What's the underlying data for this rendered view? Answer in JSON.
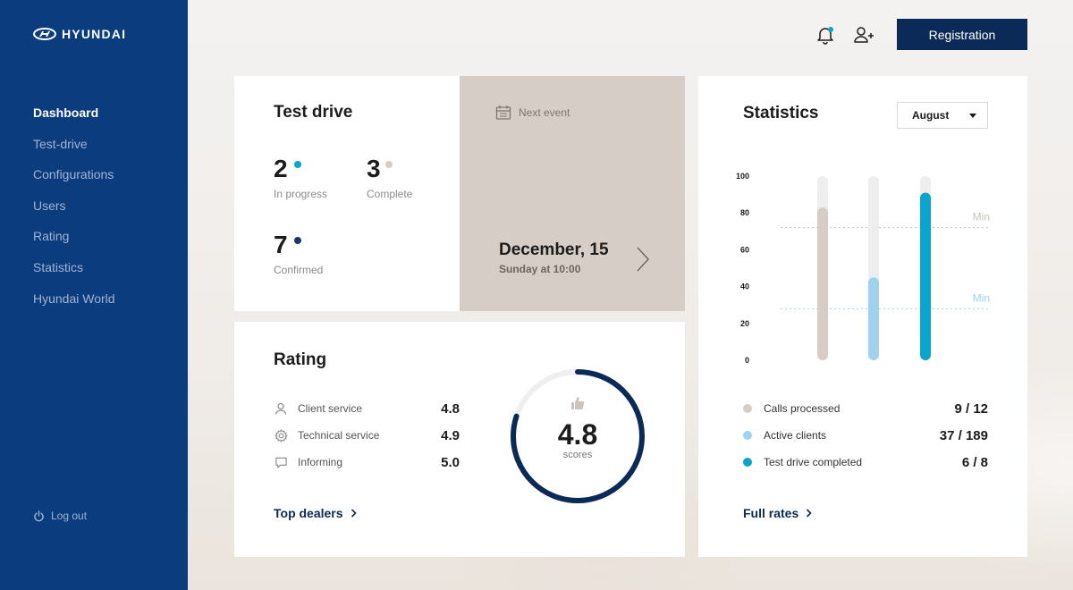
{
  "brand": {
    "name": "HYUNDAI"
  },
  "colors": {
    "sidebar": "#0b3c7e",
    "primary_dark": "#0b2a57",
    "accent_cyan": "#0aa5cf",
    "light_blue": "#9fd2ef",
    "beige": "#d6cec6",
    "navy_dot": "#17386e"
  },
  "sidebar": {
    "items": [
      {
        "label": "Dashboard",
        "active": true
      },
      {
        "label": "Test-drive",
        "active": false
      },
      {
        "label": "Configurations",
        "active": false
      },
      {
        "label": "Users",
        "active": false
      },
      {
        "label": "Rating",
        "active": false
      },
      {
        "label": "Statistics",
        "active": false
      },
      {
        "label": "Hyundai World",
        "active": false
      }
    ],
    "logout_label": "Log out"
  },
  "topbar": {
    "icons": [
      "bell-icon",
      "add-user-icon"
    ],
    "has_notification": true,
    "registration_label": "Registration"
  },
  "test_drive": {
    "title": "Test drive",
    "stats": [
      {
        "value": "2",
        "label": "In progress",
        "color": "#0aa5cf"
      },
      {
        "value": "3",
        "label": "Complete",
        "color": "#d6cec6"
      },
      {
        "value": "7",
        "label": "Confirmed",
        "color": "#17386e"
      }
    ]
  },
  "next_event": {
    "header": "Next event",
    "date": "December, 15",
    "time": "Sunday at 10:00"
  },
  "rating": {
    "title": "Rating",
    "rows": [
      {
        "icon": "person-icon",
        "label": "Client service",
        "value": "4.8"
      },
      {
        "icon": "gear-icon",
        "label": "Technical service",
        "value": "4.9"
      },
      {
        "icon": "chat-icon",
        "label": "Informing",
        "value": "5.0"
      }
    ],
    "score": "4.8",
    "score_label": "scores",
    "score_fraction": 0.8,
    "link_label": "Top dealers"
  },
  "statistics": {
    "title": "Statistics",
    "month": "August",
    "link_label": "Full rates",
    "legend": [
      {
        "label": "Calls processed",
        "value": "9 / 12",
        "color": "#d6cec6"
      },
      {
        "label": "Active clients",
        "value": "37 / 189",
        "color": "#9fd2ef"
      },
      {
        "label": "Test drive completed",
        "value": "6 / 8",
        "color": "#0aa5cf"
      }
    ]
  },
  "chart_data": {
    "type": "bar",
    "categories": [
      "Calls processed",
      "Active clients",
      "Test drive completed"
    ],
    "values": [
      83,
      45,
      91
    ],
    "colors": [
      "#d6cec6",
      "#9fd2ef",
      "#0aa5cf"
    ],
    "ylim": [
      0,
      100
    ],
    "yticks": [
      0,
      20,
      40,
      60,
      80,
      100
    ],
    "thresholds": [
      {
        "label": "Min",
        "value": 72,
        "color": "#c8c0b8"
      },
      {
        "label": "Min",
        "value": 28,
        "color": "#9fd2ef"
      }
    ],
    "grid": false,
    "legend": "bottom"
  }
}
